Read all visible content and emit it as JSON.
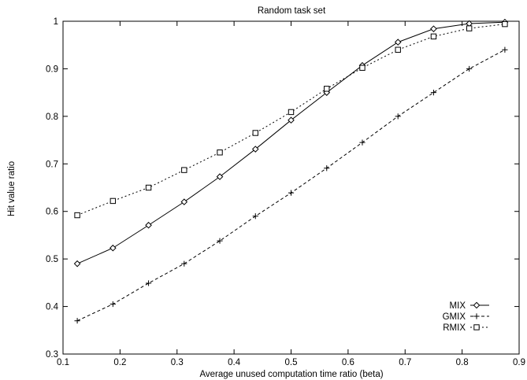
{
  "chart_data": {
    "type": "line",
    "title": "Random task set",
    "xlabel": "Average unused computation time ratio (beta)",
    "ylabel": "Hit value ratio",
    "xlim": [
      0.1,
      0.9
    ],
    "ylim": [
      0.3,
      1.0
    ],
    "xticks": [
      "0.1",
      "0.2",
      "0.3",
      "0.4",
      "0.5",
      "0.6",
      "0.7",
      "0.8",
      "0.9"
    ],
    "yticks": [
      "0.3",
      "0.4",
      "0.5",
      "0.6",
      "0.7",
      "0.8",
      "0.9",
      "1"
    ],
    "x": [
      0.125,
      0.1875,
      0.25,
      0.3125,
      0.375,
      0.4375,
      0.5,
      0.5625,
      0.625,
      0.6875,
      0.75,
      0.8125,
      0.875
    ],
    "grid": false,
    "legend_position": "bottom-right",
    "series": [
      {
        "name": "MIX",
        "marker": "diamond",
        "line_style": "solid",
        "values": [
          0.49,
          0.523,
          0.571,
          0.62,
          0.673,
          0.731,
          0.792,
          0.85,
          0.907,
          0.956,
          0.984,
          0.995,
          0.998
        ]
      },
      {
        "name": "GMIX",
        "marker": "plus",
        "line_style": "dashed",
        "values": [
          0.37,
          0.405,
          0.449,
          0.49,
          0.538,
          0.59,
          0.639,
          0.691,
          0.745,
          0.8,
          0.85,
          0.9,
          0.94
        ]
      },
      {
        "name": "RMIX",
        "marker": "square",
        "line_style": "dotted",
        "values": [
          0.592,
          0.622,
          0.65,
          0.687,
          0.724,
          0.765,
          0.809,
          0.858,
          0.902,
          0.94,
          0.968,
          0.985,
          0.994
        ]
      }
    ]
  }
}
